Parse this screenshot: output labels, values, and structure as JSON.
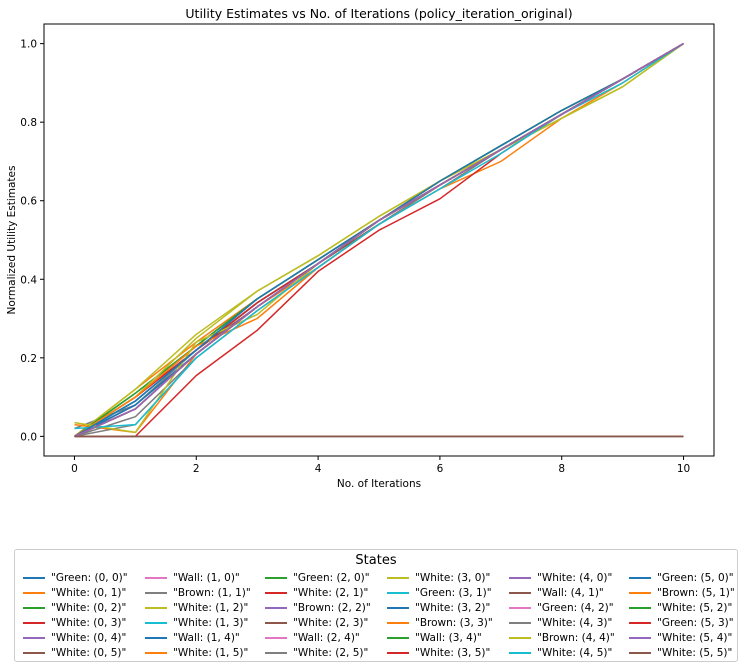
{
  "chart_data": {
    "type": "line",
    "title": "Utility Estimates vs No. of Iterations (policy_iteration_original)",
    "xlabel": "No. of Iterations",
    "ylabel": "Normalized Utility Estimates",
    "xlim": [
      -0.5,
      10.5
    ],
    "ylim": [
      -0.05,
      1.05
    ],
    "xticks": [
      "0",
      "2",
      "4",
      "6",
      "8",
      "10"
    ],
    "yticks": [
      "0.0",
      "0.2",
      "0.4",
      "0.6",
      "0.8",
      "1.0"
    ],
    "grid": false,
    "legend": {
      "title": "States",
      "placement": "bottom",
      "columns": 6
    },
    "x": [
      0,
      1,
      2,
      3,
      4,
      5,
      6,
      7,
      8,
      9,
      10
    ],
    "series": [
      {
        "name": "\"Green: (0, 0)\"",
        "color": "#1f77b4",
        "values": [
          0.0,
          0.1,
          0.23,
          0.35,
          0.45,
          0.55,
          0.64,
          0.73,
          0.82,
          0.91,
          1.0
        ]
      },
      {
        "name": "\"White: (0, 1)\"",
        "color": "#ff7f0e",
        "values": [
          0.0,
          0.12,
          0.24,
          0.35,
          0.45,
          0.55,
          0.65,
          0.74,
          0.83,
          0.91,
          1.0
        ]
      },
      {
        "name": "\"White: (0, 2)\"",
        "color": "#2ca02c",
        "values": [
          0.0,
          0.11,
          0.23,
          0.35,
          0.45,
          0.55,
          0.65,
          0.74,
          0.83,
          0.91,
          1.0
        ]
      },
      {
        "name": "\"White: (0, 3)\"",
        "color": "#d62728",
        "values": [
          0.0,
          0.1,
          0.22,
          0.34,
          0.44,
          0.55,
          0.64,
          0.73,
          0.82,
          0.91,
          1.0
        ]
      },
      {
        "name": "\"White: (0, 4)\"",
        "color": "#9467bd",
        "values": [
          0.0,
          0.09,
          0.22,
          0.34,
          0.44,
          0.55,
          0.64,
          0.73,
          0.82,
          0.91,
          1.0
        ]
      },
      {
        "name": "\"White: (0, 5)\"",
        "color": "#8c564b",
        "values": [
          0.0,
          0.09,
          0.22,
          0.33,
          0.44,
          0.54,
          0.64,
          0.73,
          0.82,
          0.91,
          1.0
        ]
      },
      {
        "name": "\"Wall: (1, 0)\"",
        "color": "#e377c2",
        "values": [
          0.0,
          0.0,
          0.0,
          0.0,
          0.0,
          0.0,
          0.0,
          0.0,
          0.0,
          0.0,
          0.0
        ]
      },
      {
        "name": "\"Brown: (1, 1)\"",
        "color": "#7f7f7f",
        "values": [
          0.02,
          0.08,
          0.22,
          0.34,
          0.44,
          0.55,
          0.64,
          0.73,
          0.82,
          0.91,
          1.0
        ]
      },
      {
        "name": "\"White: (1, 2)\"",
        "color": "#bcbd22",
        "values": [
          0.0,
          0.12,
          0.26,
          0.37,
          0.46,
          0.56,
          0.65,
          0.74,
          0.83,
          0.91,
          1.0
        ]
      },
      {
        "name": "\"White: (1, 3)\"",
        "color": "#17becf",
        "values": [
          0.0,
          0.09,
          0.22,
          0.34,
          0.44,
          0.55,
          0.64,
          0.73,
          0.82,
          0.91,
          1.0
        ]
      },
      {
        "name": "\"Wall: (1, 4)\"",
        "color": "#1f77b4",
        "values": [
          0.0,
          0.0,
          0.0,
          0.0,
          0.0,
          0.0,
          0.0,
          0.0,
          0.0,
          0.0,
          0.0
        ]
      },
      {
        "name": "\"White: (1, 5)\"",
        "color": "#ff7f0e",
        "values": [
          0.03,
          0.01,
          0.21,
          0.33,
          0.43,
          0.54,
          0.63,
          0.7,
          0.81,
          0.9,
          1.0
        ]
      },
      {
        "name": "\"Green: (2, 0)\"",
        "color": "#2ca02c",
        "values": [
          0.0,
          0.11,
          0.23,
          0.35,
          0.45,
          0.55,
          0.65,
          0.74,
          0.83,
          0.91,
          1.0
        ]
      },
      {
        "name": "\"White: (2, 1)\"",
        "color": "#d62728",
        "values": [
          0.0,
          0.1,
          0.22,
          0.34,
          0.44,
          0.55,
          0.64,
          0.73,
          0.82,
          0.91,
          1.0
        ]
      },
      {
        "name": "\"Brown: (2, 2)\"",
        "color": "#9467bd",
        "values": [
          0.0,
          0.08,
          0.21,
          0.33,
          0.44,
          0.55,
          0.64,
          0.73,
          0.82,
          0.91,
          1.0
        ]
      },
      {
        "name": "\"White: (2, 3)\"",
        "color": "#8c564b",
        "values": [
          0.0,
          0.08,
          0.21,
          0.33,
          0.44,
          0.54,
          0.64,
          0.73,
          0.82,
          0.91,
          1.0
        ]
      },
      {
        "name": "\"Wall: (2, 4)\"",
        "color": "#e377c2",
        "values": [
          0.0,
          0.0,
          0.0,
          0.0,
          0.0,
          0.0,
          0.0,
          0.0,
          0.0,
          0.0,
          0.0
        ]
      },
      {
        "name": "\"White: (2, 5)\"",
        "color": "#7f7f7f",
        "values": [
          0.0,
          0.03,
          0.2,
          0.32,
          0.43,
          0.54,
          0.63,
          0.73,
          0.82,
          0.91,
          1.0
        ]
      },
      {
        "name": "\"White: (3, 0)\"",
        "color": "#bcbd22",
        "values": [
          0.0,
          0.1,
          0.25,
          0.37,
          0.46,
          0.56,
          0.65,
          0.73,
          0.81,
          0.89,
          1.0
        ]
      },
      {
        "name": "\"Green: (3, 1)\"",
        "color": "#17becf",
        "values": [
          0.0,
          0.08,
          0.21,
          0.33,
          0.44,
          0.55,
          0.64,
          0.73,
          0.82,
          0.91,
          1.0
        ]
      },
      {
        "name": "\"White: (3, 2)\"",
        "color": "#1f77b4",
        "values": [
          0.0,
          0.08,
          0.21,
          0.33,
          0.44,
          0.55,
          0.64,
          0.73,
          0.82,
          0.91,
          1.0
        ]
      },
      {
        "name": "\"Brown: (3, 3)\"",
        "color": "#ff7f0e",
        "values": [
          0.0,
          0.1,
          0.23,
          0.3,
          0.43,
          0.54,
          0.64,
          0.73,
          0.82,
          0.91,
          1.0
        ]
      },
      {
        "name": "\"Wall: (3, 4)\"",
        "color": "#2ca02c",
        "values": [
          0.0,
          0.0,
          0.0,
          0.0,
          0.0,
          0.0,
          0.0,
          0.0,
          0.0,
          0.0,
          0.0
        ]
      },
      {
        "name": "\"White: (3, 5)\"",
        "color": "#d62728",
        "values": [
          0.0,
          0.0,
          0.155,
          0.27,
          0.42,
          0.525,
          0.605,
          0.72,
          0.82,
          0.91,
          1.0
        ]
      },
      {
        "name": "\"White: (4, 0)\"",
        "color": "#9467bd",
        "values": [
          0.0,
          0.07,
          0.21,
          0.33,
          0.44,
          0.55,
          0.64,
          0.73,
          0.82,
          0.91,
          1.0
        ]
      },
      {
        "name": "\"Wall: (4, 1)\"",
        "color": "#8c564b",
        "values": [
          0.0,
          0.0,
          0.0,
          0.0,
          0.0,
          0.0,
          0.0,
          0.0,
          0.0,
          0.0,
          0.0
        ]
      },
      {
        "name": "\"Green: (4, 2)\"",
        "color": "#e377c2",
        "values": [
          0.0,
          0.07,
          0.21,
          0.33,
          0.44,
          0.55,
          0.64,
          0.73,
          0.82,
          0.91,
          1.0
        ]
      },
      {
        "name": "\"White: (4, 3)\"",
        "color": "#7f7f7f",
        "values": [
          0.0,
          0.05,
          0.2,
          0.32,
          0.43,
          0.54,
          0.64,
          0.73,
          0.82,
          0.91,
          1.0
        ]
      },
      {
        "name": "\"Brown: (4, 4)\"",
        "color": "#bcbd22",
        "values": [
          0.035,
          0.01,
          0.24,
          0.31,
          0.44,
          0.55,
          0.65,
          0.73,
          0.81,
          0.89,
          1.0
        ]
      },
      {
        "name": "\"White: (4, 5)\"",
        "color": "#17becf",
        "values": [
          0.02,
          0.03,
          0.2,
          0.32,
          0.43,
          0.54,
          0.63,
          0.72,
          0.82,
          0.9,
          1.0
        ]
      },
      {
        "name": "\"Green: (5, 0)\"",
        "color": "#1f77b4",
        "values": [
          0.0,
          0.09,
          0.22,
          0.35,
          0.45,
          0.55,
          0.65,
          0.74,
          0.83,
          0.91,
          1.0
        ]
      },
      {
        "name": "\"Brown: (5, 1)\"",
        "color": "#ff7f0e",
        "values": [
          0.0,
          0.07,
          0.21,
          0.33,
          0.44,
          0.55,
          0.64,
          0.73,
          0.82,
          0.91,
          1.0
        ]
      },
      {
        "name": "\"White: (5, 2)\"",
        "color": "#2ca02c",
        "values": [
          0.0,
          0.07,
          0.21,
          0.33,
          0.44,
          0.55,
          0.64,
          0.73,
          0.82,
          0.91,
          1.0
        ]
      },
      {
        "name": "\"Green: (5, 3)\"",
        "color": "#d62728",
        "values": [
          0.0,
          0.07,
          0.21,
          0.33,
          0.44,
          0.55,
          0.64,
          0.73,
          0.82,
          0.91,
          1.0
        ]
      },
      {
        "name": "\"White: (5, 4)\"",
        "color": "#9467bd",
        "values": [
          0.0,
          0.07,
          0.21,
          0.33,
          0.44,
          0.55,
          0.64,
          0.73,
          0.82,
          0.91,
          1.0
        ]
      },
      {
        "name": "\"White: (5, 5)\"",
        "color": "#8c564b",
        "values": [
          0.0,
          0.0,
          0.0,
          0.0,
          0.0,
          0.0,
          0.0,
          0.0,
          0.0,
          0.0,
          0.0
        ]
      }
    ]
  }
}
